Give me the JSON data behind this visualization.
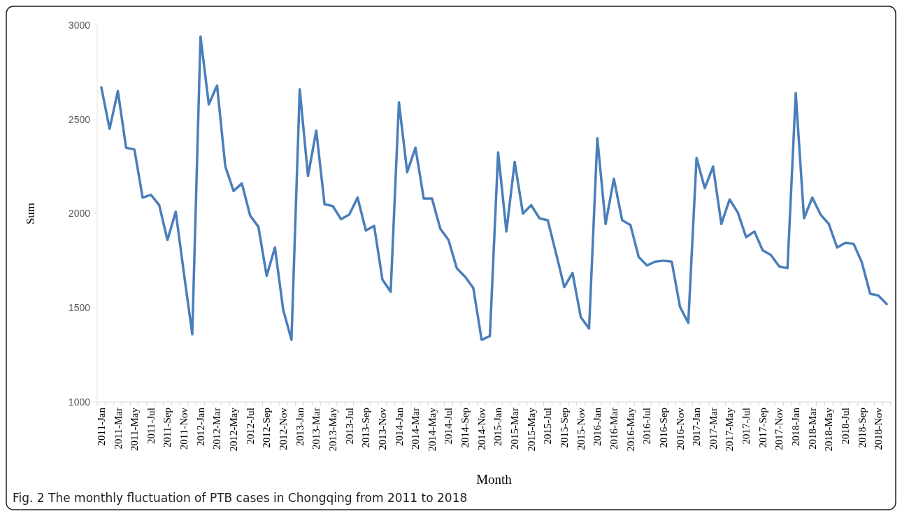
{
  "chart_data": {
    "type": "line",
    "xlabel": "Month",
    "ylabel": "Sum",
    "annotations": [
      "Fig. 2 The monthly fluctuation of PTB cases in Chongqing from 2011 to 2018"
    ],
    "categories": [
      "2011-Jan",
      null,
      "2011-Mar",
      null,
      "2011-May",
      null,
      "2011-Jul",
      null,
      "2011-Sep",
      null,
      "2011-Nov",
      null,
      "2012-Jan",
      null,
      "2012-Mar",
      null,
      "2012-May",
      null,
      "2012-Jul",
      null,
      "2012-Sep",
      null,
      "2012-Nov",
      null,
      "2013-Jan",
      null,
      "2013-Mar",
      null,
      "2013-May",
      null,
      "2013-Jul",
      null,
      "2013-Sep",
      null,
      "2013-Nov",
      null,
      "2014-Jan",
      null,
      "2014-Mar",
      null,
      "2014-May",
      null,
      "2014-Jul",
      null,
      "2014-Sep",
      null,
      "2014-Nov",
      null,
      "2015-Jan",
      null,
      "2015-Mar",
      null,
      "2015-May",
      null,
      "2015-Jul",
      null,
      "2015-Sep",
      null,
      "2015-Nov",
      null,
      "2016-Jan",
      null,
      "2016-Mar",
      null,
      "2016-May",
      null,
      "2016-Jul",
      null,
      "2016-Sep",
      null,
      "2016-Nov",
      null,
      "2017-Jan",
      null,
      "2017-Mar",
      null,
      "2017-May",
      null,
      "2017-Jul",
      null,
      "2017-Sep",
      null,
      "2017-Nov",
      null,
      "2018-Jan",
      null,
      "2018-Mar",
      null,
      "2018-May",
      null,
      "2018-Jul",
      null,
      "2018-Sep",
      null,
      "2018-Nov",
      null
    ],
    "series": [
      {
        "color": "#4a7ebb",
        "values": [
          2670,
          2450,
          2650,
          2350,
          2340,
          2085,
          2100,
          2045,
          1860,
          2010,
          1680,
          1360,
          2940,
          2580,
          2680,
          2250,
          2120,
          2160,
          1990,
          1930,
          1670,
          1820,
          1490,
          1330,
          2660,
          2200,
          2440,
          2050,
          2040,
          1970,
          1995,
          2085,
          1910,
          1935,
          1650,
          1585,
          2590,
          2220,
          2350,
          2080,
          2080,
          1920,
          1860,
          1710,
          1665,
          1605,
          1330,
          1350,
          2325,
          1905,
          2275,
          2000,
          2045,
          1975,
          1965,
          1790,
          1610,
          1685,
          1450,
          1390,
          2400,
          1945,
          2185,
          1965,
          1940,
          1770,
          1725,
          1745,
          1750,
          1745,
          1505,
          1420,
          2295,
          2135,
          2250,
          1945,
          2075,
          2005,
          1875,
          1905,
          1805,
          1780,
          1720,
          1710,
          2640,
          1975,
          2085,
          1995,
          1945,
          1820,
          1845,
          1840,
          1740,
          1575,
          1565,
          1520
        ]
      }
    ],
    "ylim": [
      1000,
      3000
    ],
    "yticks": [
      1000,
      1500,
      2000,
      2500,
      3000
    ],
    "grid": false,
    "marker": "none",
    "line_style": "solid"
  }
}
